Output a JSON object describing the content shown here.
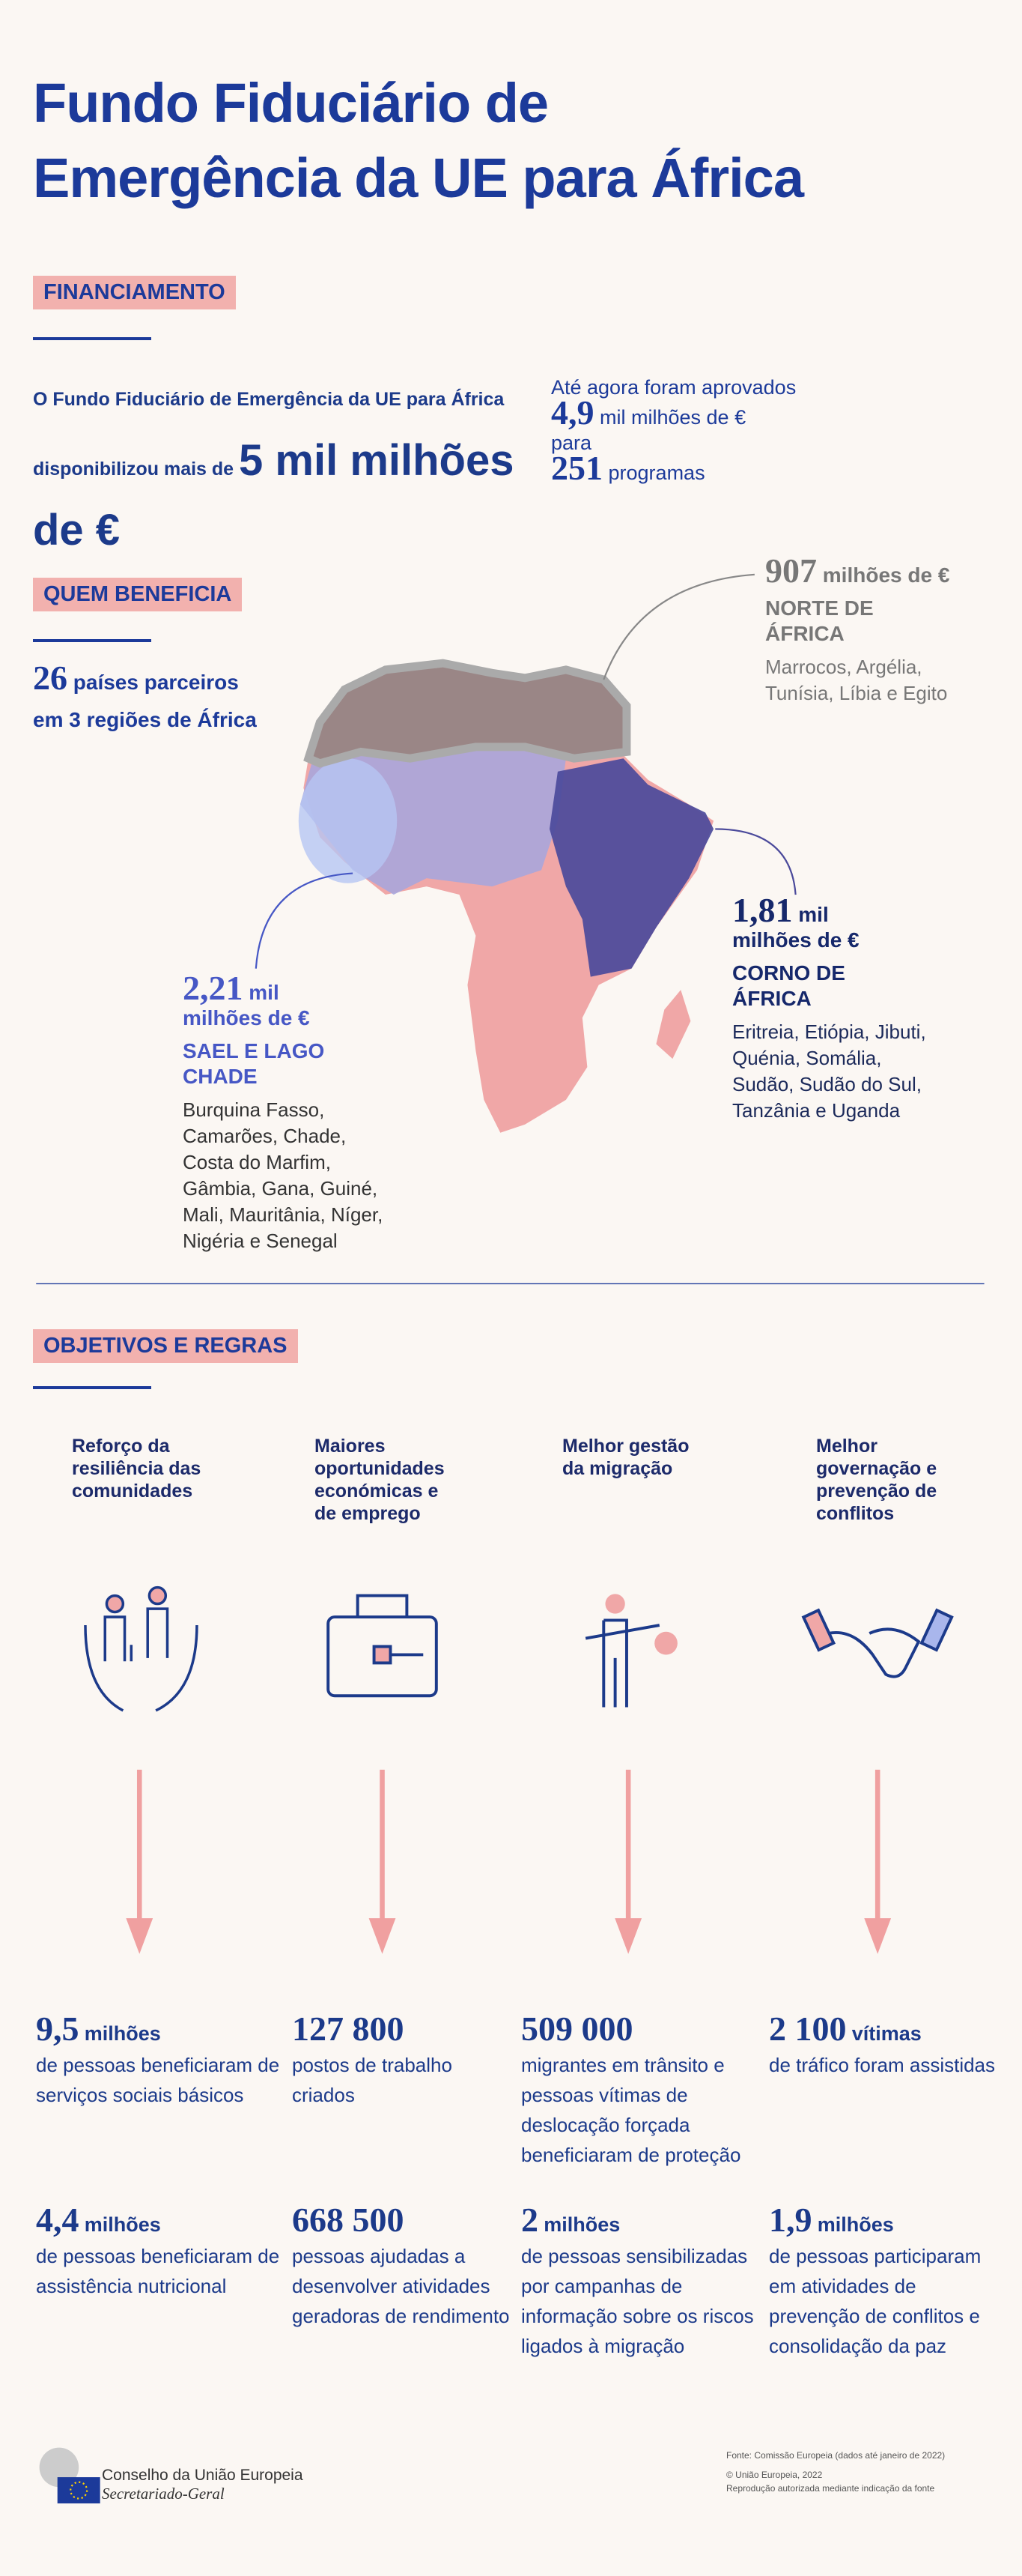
{
  "header": {
    "title_lines": [
      "Fundo Fiduciário de",
      "Emergência da UE para África"
    ]
  },
  "funding": {
    "label": "FINANCIAMENTO",
    "intro": "O Fundo Fiduciário de Emergência da UE para África disponibilizou mais de",
    "amount": "5 mil milhões de €",
    "approved_intro": "Até agora foram aprovados",
    "approved_amount": "4,9",
    "approved_unit": "mil milhões de €",
    "for": "para",
    "programs": "251",
    "programs_unit": "programas"
  },
  "beneficiaries": {
    "label": "QUEM BENEFICIA",
    "count": "26",
    "count_text": "países parceiros",
    "count_text2": "em 3 regiões de África",
    "regions": [
      {
        "amount": "907",
        "unit": "milhões de €",
        "name": "NORTE DE ÁFRICA",
        "countries": "Marrocos, Argélia, Tunísia, Líbia e Egito"
      },
      {
        "amount": "1,81",
        "unit_top": "mil",
        "unit": "milhões de €",
        "name": "CORNO DE ÁFRICA",
        "countries": "Eritreia, Etiópia, Jibuti, Quénia, Somália, Sudão, Sudão do Sul, Tanzânia e Uganda"
      },
      {
        "amount": "2,21",
        "unit_top": "mil",
        "unit": "milhões de €",
        "name": "SAEL E LAGO CHADE",
        "countries": "Burquina Fasso, Camarões, Chade, Costa do Marfim, Gâmbia, Gana, Guiné, Mali, Mauritânia, Níger, Nigéria e Senegal"
      }
    ]
  },
  "objectives": {
    "label": "OBJETIVOS E REGRAS",
    "items": [
      {
        "title": "Reforço da resiliência das comunidades",
        "results": [
          {
            "value": "9,5",
            "unit": "milhões",
            "text": "de pessoas beneficiaram de serviços sociais básicos"
          },
          {
            "value": "4,4",
            "unit": "milhões",
            "text": "de pessoas beneficiaram de assistência nutricional"
          }
        ]
      },
      {
        "title": "Maiores oportunidades económicas e de emprego",
        "results": [
          {
            "value": "127 800",
            "text": "postos de trabalho criados"
          },
          {
            "value": "668 500",
            "text": "pessoas ajudadas a desenvolver atividades geradoras de rendimento"
          }
        ]
      },
      {
        "title": "Melhor gestão da migração",
        "results": [
          {
            "value": "509 000",
            "text": "migrantes em trânsito e pessoas vítimas de deslocação forçada beneficiaram de proteção"
          },
          {
            "value": "2",
            "unit": "milhões",
            "text": "de pessoas sensibilizadas por campanhas de informação sobre os riscos ligados à migração"
          }
        ]
      },
      {
        "title": "Melhor governação e prevenção de conflitos",
        "results": [
          {
            "value": "2 100",
            "unit": "vítimas",
            "text": "de tráfico foram assistidas"
          },
          {
            "value": "1,9",
            "unit": "milhões",
            "text": "de pessoas participaram em atividades de prevenção de conflitos e consolidação da paz"
          }
        ]
      }
    ]
  },
  "footer": {
    "org": "Conselho da União Europeia",
    "dept": "Secretariado-Geral",
    "source": "Fonte: Comissão Europeia (dados até janeiro de 2022)",
    "copyright": "© União Europeia, 2022",
    "reproduction": "Reprodução autorizada mediante indicação da fonte"
  }
}
